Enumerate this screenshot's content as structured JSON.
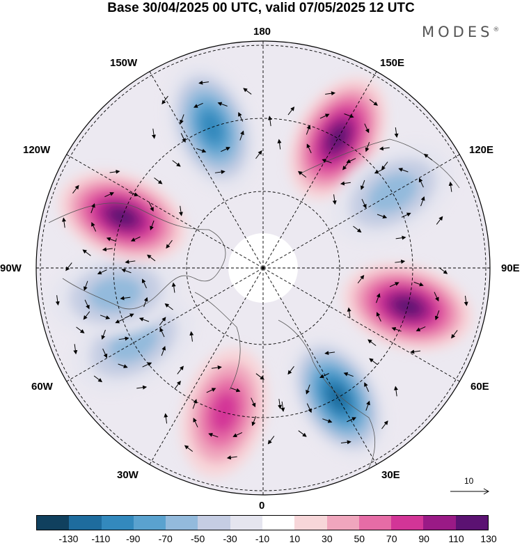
{
  "header": {
    "title": "Base 30/04/2025 00 UTC, valid 07/05/2025 12 UTC",
    "logo_text": "MODES",
    "logo_mark": "®"
  },
  "map": {
    "projection": "north polar stereographic",
    "longitude_labels": {
      "top": "180",
      "top_right": "150E",
      "upper_right": "120E",
      "right": "90E",
      "lower_right": "60E",
      "bottom_right": "30E",
      "bottom": "0",
      "bottom_left": "30W",
      "lower_left": "60W",
      "left": "90W",
      "upper_left": "120W",
      "top_left": "150W"
    },
    "anomaly_centers": [
      {
        "sign": "positive",
        "lon": "150E",
        "strength": 110
      },
      {
        "sign": "negative",
        "lon": "120E",
        "strength": -50
      },
      {
        "sign": "positive",
        "lon": "75E",
        "strength": 110
      },
      {
        "sign": "negative",
        "lon": "30E",
        "strength": -110
      },
      {
        "sign": "positive",
        "lon": "15W",
        "strength": 70
      },
      {
        "sign": "negative",
        "lon": "60W",
        "strength": -50
      },
      {
        "sign": "negative",
        "lon": "80W",
        "strength": -50
      },
      {
        "sign": "positive",
        "lon": "110W",
        "strength": 110
      },
      {
        "sign": "negative",
        "lon": "160W",
        "strength": -90
      }
    ]
  },
  "reference_vector": {
    "label": "10"
  },
  "colorbar": {
    "labels": [
      "-130",
      "-110",
      "-90",
      "-70",
      "-50",
      "-30",
      "-10",
      "10",
      "30",
      "50",
      "70",
      "90",
      "110",
      "130"
    ],
    "colors": [
      "#10405e",
      "#1e6c9e",
      "#3389bd",
      "#5aa2cf",
      "#93badc",
      "#c5cde3",
      "#e5e5ef",
      "#ffffff",
      "#f7d6d9",
      "#f0a6bd",
      "#e66ca6",
      "#d33597",
      "#9a1a86",
      "#5b1272"
    ]
  }
}
